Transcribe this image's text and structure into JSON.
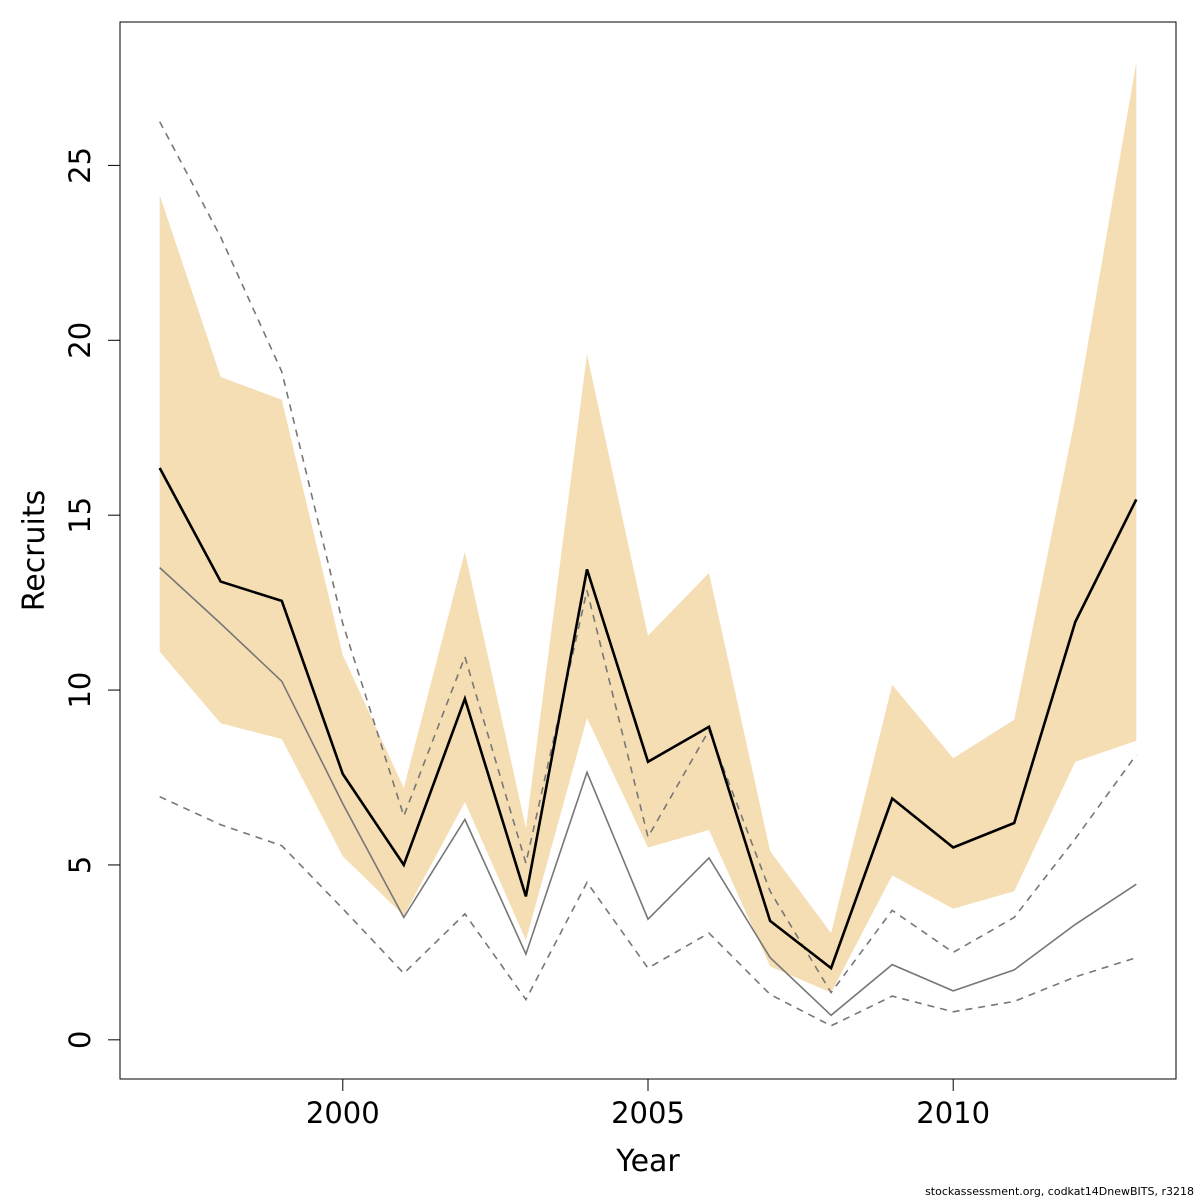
{
  "chart_data": {
    "type": "line",
    "xlabel": "Year",
    "ylabel": "Recruits",
    "xlim": [
      1996.35,
      2013.65
    ],
    "ylim": [
      -1.12,
      29.1
    ],
    "x_ticks": [
      2000,
      2005,
      2010
    ],
    "y_ticks": [
      0,
      5,
      10,
      15,
      20,
      25
    ],
    "x": [
      1997,
      1998,
      1999,
      2000,
      2001,
      2002,
      2003,
      2004,
      2005,
      2006,
      2007,
      2008,
      2009,
      2010,
      2011,
      2012,
      2013
    ],
    "band": {
      "color": "#F5DEB3",
      "lower": [
        11.1,
        9.05,
        8.6,
        5.25,
        3.55,
        6.8,
        2.85,
        9.2,
        5.5,
        6.0,
        2.1,
        1.35,
        4.7,
        3.75,
        4.25,
        7.95,
        8.55
      ],
      "upper": [
        24.15,
        18.95,
        18.3,
        11.0,
        7.2,
        13.95,
        6.05,
        19.6,
        11.55,
        13.35,
        5.4,
        3.05,
        10.15,
        8.05,
        9.15,
        17.8,
        27.95
      ]
    },
    "series": [
      {
        "style": "solid",
        "color": "#000000",
        "values": [
          16.35,
          13.1,
          12.55,
          7.6,
          5.0,
          9.75,
          4.1,
          13.45,
          7.95,
          8.95,
          3.4,
          2.05,
          6.9,
          5.5,
          6.2,
          11.95,
          15.45
        ]
      },
      {
        "style": "solid",
        "color": "#777777",
        "values": [
          13.5,
          11.9,
          10.25,
          6.75,
          3.5,
          6.3,
          2.45,
          7.65,
          3.45,
          5.2,
          2.35,
          0.7,
          2.15,
          1.4,
          2.0,
          3.3,
          4.45
        ]
      },
      {
        "style": "dashed",
        "color": "#777777",
        "values": [
          26.25,
          22.95,
          19.1,
          11.9,
          6.4,
          10.95,
          5.05,
          12.85,
          5.8,
          8.85,
          4.25,
          1.35,
          3.7,
          2.5,
          3.5,
          5.75,
          8.15
        ]
      },
      {
        "style": "dashed",
        "color": "#777777",
        "values": [
          6.95,
          6.15,
          5.55,
          3.75,
          1.9,
          3.6,
          1.15,
          4.5,
          2.05,
          3.05,
          1.3,
          0.4,
          1.25,
          0.8,
          1.1,
          1.8,
          2.35
        ]
      }
    ],
    "grid": false,
    "footnote": "stockassessment.org, codkat14DnewBITS, r3218"
  }
}
